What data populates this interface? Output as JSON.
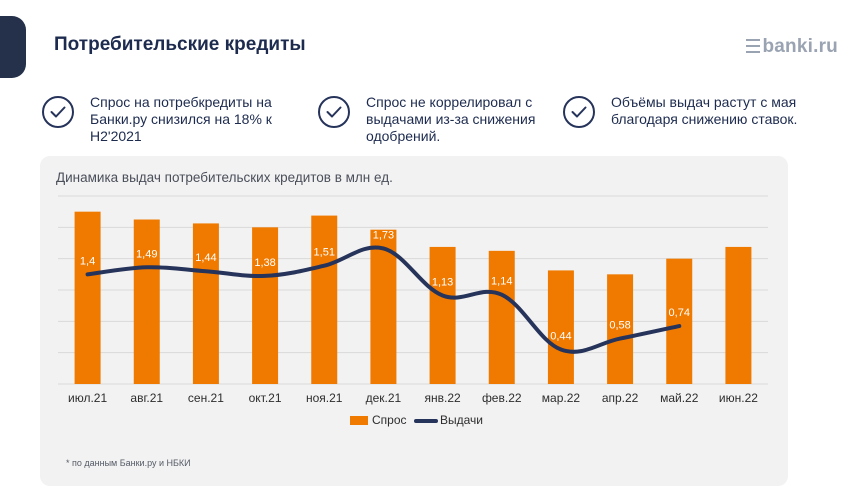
{
  "header": {
    "title": "Потребительские кредиты",
    "logo_text": "banki.ru"
  },
  "points": [
    {
      "text": "Спрос на потребкредиты на Банки.ру снизился на 18% к H2'2021",
      "icon": "check-icon"
    },
    {
      "text": "Спрос не коррелировал с выдачами из-за снижения одобрений.",
      "icon": "check-icon"
    },
    {
      "text": "Объёмы выдач растут с мая благодаря снижению ставок.",
      "icon": "check-icon"
    }
  ],
  "chart_data": {
    "type": "bar",
    "title": "Динамика выдач потребительских кредитов в млн ед.",
    "categories": [
      "июл.21",
      "авг.21",
      "сен.21",
      "окт.21",
      "ноя.21",
      "дек.21",
      "янв.22",
      "фев.22",
      "мар.22",
      "апр.22",
      "май.22",
      "июн.22"
    ],
    "series": [
      {
        "name": "Спрос",
        "type": "bar",
        "color": "#f07a00",
        "values": [
          2.2,
          2.1,
          2.05,
          2.0,
          2.15,
          1.97,
          1.75,
          1.7,
          1.45,
          1.4,
          1.6,
          1.75
        ]
      },
      {
        "name": "Выдачи",
        "type": "line",
        "color": "#26335a",
        "values": [
          1.4,
          1.49,
          1.44,
          1.38,
          1.51,
          1.73,
          1.13,
          1.14,
          0.44,
          0.58,
          0.74,
          null
        ],
        "labels": [
          "1,4",
          "1,49",
          "1,44",
          "1,38",
          "1,51",
          "1,73",
          "1,13",
          "1,14",
          "0,44",
          "0,58",
          "0,74",
          ""
        ]
      }
    ],
    "ylim": [
      0,
      2.4
    ],
    "grid": true,
    "legend_position": "bottom"
  },
  "footnote": "* по данным Банки.ру и НБКИ",
  "colors": {
    "accent": "#f07a00",
    "navy": "#26335a",
    "panel": "#f2f2f2"
  }
}
